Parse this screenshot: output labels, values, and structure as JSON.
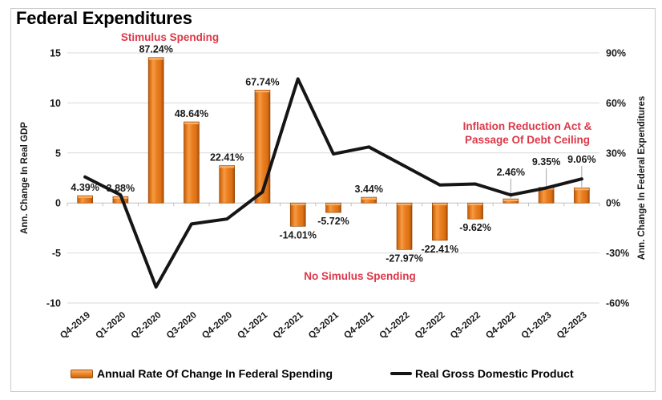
{
  "title": "Federal Expenditures",
  "colors": {
    "bar_main": "#E87F22",
    "bar_dark_edge": "#A54B07",
    "bar_light_cap": "#FBB269",
    "line": "#151515",
    "annotation_red": "#DD3848",
    "gridline": "#D9D9D9",
    "axis_line": "#BFBFBF",
    "leader_line": "#A6A6A6",
    "label_text": "#1A1A1A"
  },
  "chart_data": {
    "type": "combo: bar + line, dual axis",
    "categories": [
      "Q4-2019",
      "Q1-2020",
      "Q2-2020",
      "Q3-2020",
      "Q4-2020",
      "Q1-2021",
      "Q2-2021",
      "Q3-2021",
      "Q4-2021",
      "Q1-2022",
      "Q2-2022",
      "Q3-2022",
      "Q4-2022",
      "Q1-2023",
      "Q2-2023"
    ],
    "series": [
      {
        "name": "Annual Rate Of Change In Federal Spending",
        "type": "bar",
        "axis": "right",
        "unit": "%",
        "values": [
          4.39,
          3.88,
          87.24,
          48.64,
          22.41,
          67.74,
          -14.01,
          -5.72,
          3.44,
          -27.97,
          -22.41,
          -9.62,
          2.46,
          9.35,
          9.06
        ],
        "labels": [
          "4.39%",
          "3.88%",
          "87.24%",
          "48.64%",
          "22.41%",
          "67.74%",
          "-14.01%",
          "-5.72%",
          "3.44%",
          "-27.97%",
          "-22.41%",
          "-9.62%",
          "2.46%",
          "9.35%",
          "9.06%"
        ]
      },
      {
        "name": "Real Gross Domestic Product",
        "type": "line",
        "axis": "left",
        "values": [
          2.6,
          0.8,
          -8.4,
          -2.1,
          -1.6,
          1.1,
          12.4,
          4.9,
          5.6,
          3.7,
          1.8,
          1.9,
          0.8,
          1.5,
          2.4
        ]
      }
    ],
    "left_axis": {
      "title": "Ann. Change In Real GDP",
      "ticks": [
        "15",
        "10",
        "5",
        "0",
        "-5",
        "-10"
      ],
      "max": 15,
      "min": -10,
      "step": 5
    },
    "right_axis": {
      "title": "Ann. Change In Federal Expenditures",
      "ticks": [
        "90%",
        "60%",
        "30%",
        "0%",
        "-30%",
        "-60%"
      ],
      "max": 90,
      "min": -60,
      "step": 30
    },
    "annotations": [
      {
        "id": "stimulus",
        "line1": "Stimulus Spending",
        "line2": ""
      },
      {
        "id": "no-stimulus",
        "line1": "No Simulus Spending",
        "line2": ""
      },
      {
        "id": "ira",
        "line1": "Inflation Reduction Act &",
        "line2": "Passage Of Debt Ceiling"
      }
    ],
    "legend": [
      {
        "label": "Annual Rate Of Change In Federal Spending"
      },
      {
        "label": "Real Gross Domestic Product"
      }
    ],
    "grid": true,
    "legend_position": "bottom"
  }
}
